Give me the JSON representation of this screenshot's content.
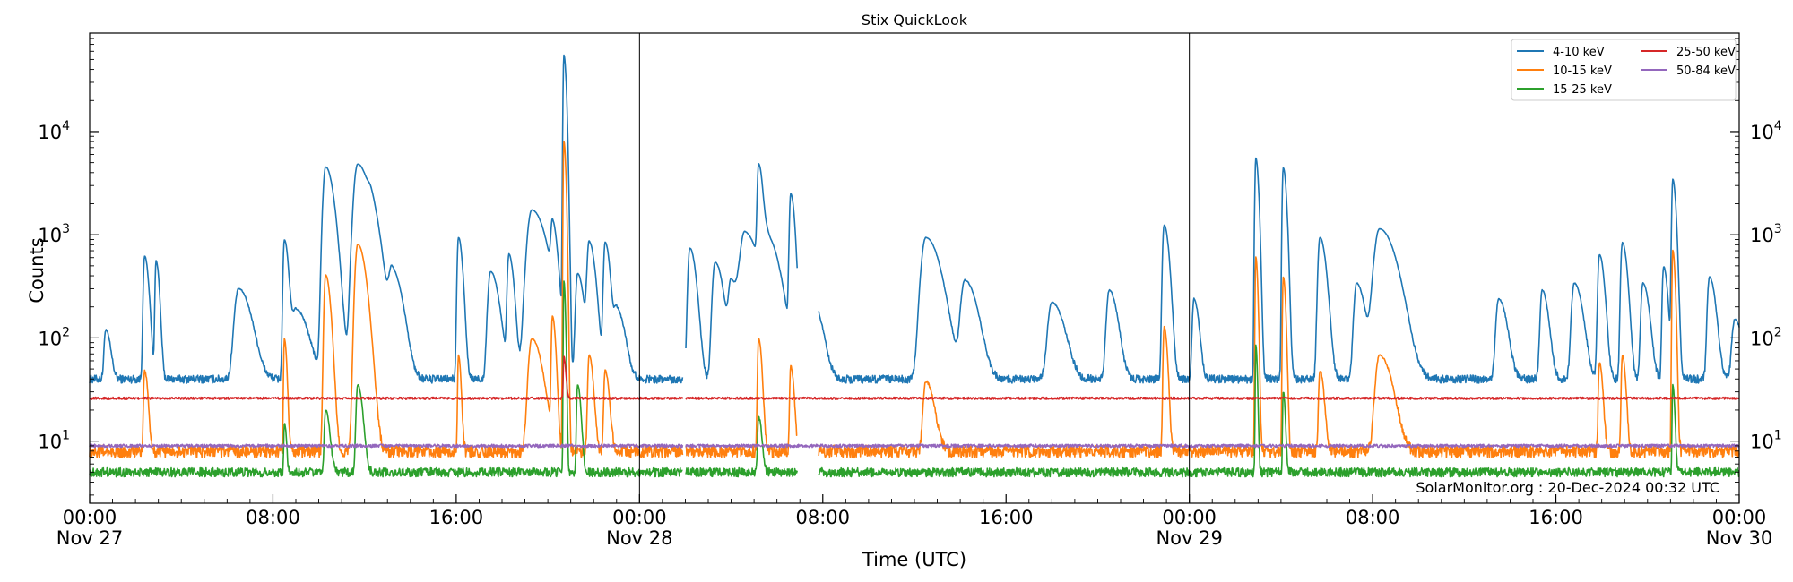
{
  "chart_data": {
    "type": "line",
    "title": "Stix QuickLook",
    "xlabel": "Time (UTC)",
    "ylabel": "Counts",
    "yscale": "log",
    "ylim": [
      2.5,
      90000
    ],
    "xlim_hours": [
      0,
      72
    ],
    "y_ticks": [
      {
        "value": 10,
        "label": "10",
        "exp": "1"
      },
      {
        "value": 100,
        "label": "10",
        "exp": "2"
      },
      {
        "value": 1000,
        "label": "10",
        "exp": "3"
      },
      {
        "value": 10000,
        "label": "10",
        "exp": "4"
      }
    ],
    "x_ticks": [
      {
        "hour": 0,
        "time": "00:00",
        "date": "Nov 27"
      },
      {
        "hour": 8,
        "time": "08:00",
        "date": ""
      },
      {
        "hour": 16,
        "time": "16:00",
        "date": ""
      },
      {
        "hour": 24,
        "time": "00:00",
        "date": "Nov 28"
      },
      {
        "hour": 32,
        "time": "08:00",
        "date": ""
      },
      {
        "hour": 40,
        "time": "16:00",
        "date": ""
      },
      {
        "hour": 48,
        "time": "00:00",
        "date": "Nov 29"
      },
      {
        "hour": 56,
        "time": "08:00",
        "date": ""
      },
      {
        "hour": 64,
        "time": "16:00",
        "date": ""
      },
      {
        "hour": 72,
        "time": "00:00",
        "date": "Nov 30"
      }
    ],
    "day_dividers_hours": [
      24,
      48
    ],
    "legend_position": "top-right",
    "annotation": "SolarMonitor.org : 20-Dec-2024 00:32 UTC",
    "series": [
      {
        "name": "4-10 keV",
        "color": "#1f77b4",
        "baseline": 40,
        "noise": 0.09,
        "gaps": [
          [
            25.9,
            26.0
          ],
          [
            30.9,
            31.8
          ]
        ],
        "peaks": [
          {
            "t": 0.7,
            "v": 80,
            "w": 0.12
          },
          {
            "t": 2.4,
            "v": 580,
            "w": 0.1
          },
          {
            "t": 2.9,
            "v": 520,
            "w": 0.08
          },
          {
            "t": 6.5,
            "v": 260,
            "w": 0.3
          },
          {
            "t": 8.5,
            "v": 850,
            "w": 0.1
          },
          {
            "t": 9.0,
            "v": 150,
            "w": 0.3
          },
          {
            "t": 10.3,
            "v": 4500,
            "w": 0.2
          },
          {
            "t": 11.7,
            "v": 4800,
            "w": 0.3
          },
          {
            "t": 12.3,
            "v": 800,
            "w": 0.25
          },
          {
            "t": 13.2,
            "v": 400,
            "w": 0.25
          },
          {
            "t": 16.1,
            "v": 900,
            "w": 0.1
          },
          {
            "t": 17.5,
            "v": 400,
            "w": 0.2
          },
          {
            "t": 18.3,
            "v": 600,
            "w": 0.12
          },
          {
            "t": 19.3,
            "v": 1700,
            "w": 0.35
          },
          {
            "t": 20.2,
            "v": 1000,
            "w": 0.12
          },
          {
            "t": 20.7,
            "v": 55000,
            "w": 0.06
          },
          {
            "t": 21.3,
            "v": 380,
            "w": 0.15
          },
          {
            "t": 21.8,
            "v": 800,
            "w": 0.15
          },
          {
            "t": 22.5,
            "v": 800,
            "w": 0.12
          },
          {
            "t": 23.0,
            "v": 150,
            "w": 0.2
          },
          {
            "t": 26.2,
            "v": 700,
            "w": 0.15
          },
          {
            "t": 27.3,
            "v": 500,
            "w": 0.2
          },
          {
            "t": 28.0,
            "v": 300,
            "w": 0.2
          },
          {
            "t": 28.6,
            "v": 1000,
            "w": 0.35
          },
          {
            "t": 29.2,
            "v": 4300,
            "w": 0.1
          },
          {
            "t": 29.6,
            "v": 800,
            "w": 0.3
          },
          {
            "t": 30.6,
            "v": 2400,
            "w": 0.1
          },
          {
            "t": 31.5,
            "v": 200,
            "w": 0.25
          },
          {
            "t": 36.5,
            "v": 900,
            "w": 0.35
          },
          {
            "t": 38.2,
            "v": 320,
            "w": 0.3
          },
          {
            "t": 42.0,
            "v": 180,
            "w": 0.3
          },
          {
            "t": 44.5,
            "v": 250,
            "w": 0.2
          },
          {
            "t": 46.9,
            "v": 1200,
            "w": 0.12
          },
          {
            "t": 48.2,
            "v": 200,
            "w": 0.12
          },
          {
            "t": 50.9,
            "v": 5500,
            "w": 0.07
          },
          {
            "t": 52.1,
            "v": 4400,
            "w": 0.08
          },
          {
            "t": 53.7,
            "v": 900,
            "w": 0.15
          },
          {
            "t": 55.3,
            "v": 300,
            "w": 0.2
          },
          {
            "t": 56.3,
            "v": 1100,
            "w": 0.4
          },
          {
            "t": 61.5,
            "v": 200,
            "w": 0.2
          },
          {
            "t": 63.4,
            "v": 250,
            "w": 0.15
          },
          {
            "t": 64.8,
            "v": 300,
            "w": 0.2
          },
          {
            "t": 65.9,
            "v": 600,
            "w": 0.12
          },
          {
            "t": 66.9,
            "v": 800,
            "w": 0.12
          },
          {
            "t": 67.8,
            "v": 300,
            "w": 0.15
          },
          {
            "t": 68.7,
            "v": 450,
            "w": 0.1
          },
          {
            "t": 69.1,
            "v": 3400,
            "w": 0.08
          },
          {
            "t": 70.7,
            "v": 350,
            "w": 0.15
          },
          {
            "t": 71.8,
            "v": 110,
            "w": 0.2
          }
        ]
      },
      {
        "name": "10-15 keV",
        "color": "#ff7f0e",
        "baseline": 8,
        "noise": 0.14,
        "gaps": [
          [
            25.9,
            26.0
          ],
          [
            30.9,
            31.8
          ]
        ],
        "peaks": [
          {
            "t": 2.4,
            "v": 40,
            "w": 0.08
          },
          {
            "t": 8.5,
            "v": 90,
            "w": 0.06
          },
          {
            "t": 10.3,
            "v": 400,
            "w": 0.12
          },
          {
            "t": 11.7,
            "v": 800,
            "w": 0.2
          },
          {
            "t": 16.1,
            "v": 60,
            "w": 0.06
          },
          {
            "t": 19.3,
            "v": 90,
            "w": 0.25
          },
          {
            "t": 20.2,
            "v": 150,
            "w": 0.08
          },
          {
            "t": 20.7,
            "v": 8000,
            "w": 0.05
          },
          {
            "t": 21.8,
            "v": 60,
            "w": 0.1
          },
          {
            "t": 22.5,
            "v": 40,
            "w": 0.1
          },
          {
            "t": 29.2,
            "v": 90,
            "w": 0.08
          },
          {
            "t": 30.6,
            "v": 45,
            "w": 0.08
          },
          {
            "t": 36.5,
            "v": 30,
            "w": 0.2
          },
          {
            "t": 46.9,
            "v": 120,
            "w": 0.08
          },
          {
            "t": 50.9,
            "v": 600,
            "w": 0.05
          },
          {
            "t": 52.1,
            "v": 380,
            "w": 0.06
          },
          {
            "t": 53.7,
            "v": 40,
            "w": 0.1
          },
          {
            "t": 56.3,
            "v": 60,
            "w": 0.3
          },
          {
            "t": 65.9,
            "v": 50,
            "w": 0.08
          },
          {
            "t": 66.9,
            "v": 60,
            "w": 0.08
          },
          {
            "t": 69.1,
            "v": 700,
            "w": 0.06
          }
        ]
      },
      {
        "name": "15-25 keV",
        "color": "#2ca02c",
        "baseline": 5,
        "noise": 0.1,
        "gaps": [
          [
            25.9,
            26.0
          ],
          [
            30.9,
            31.8
          ]
        ],
        "peaks": [
          {
            "t": 8.5,
            "v": 10,
            "w": 0.05
          },
          {
            "t": 10.3,
            "v": 15,
            "w": 0.1
          },
          {
            "t": 11.7,
            "v": 30,
            "w": 0.12
          },
          {
            "t": 20.7,
            "v": 350,
            "w": 0.04
          },
          {
            "t": 21.3,
            "v": 30,
            "w": 0.08
          },
          {
            "t": 29.2,
            "v": 12,
            "w": 0.08
          },
          {
            "t": 50.9,
            "v": 80,
            "w": 0.04
          },
          {
            "t": 52.1,
            "v": 25,
            "w": 0.05
          },
          {
            "t": 69.1,
            "v": 30,
            "w": 0.05
          }
        ]
      },
      {
        "name": "25-50 keV",
        "color": "#d62728",
        "baseline": 26,
        "noise": 0.025,
        "gaps": [
          [
            25.9,
            26.0
          ]
        ],
        "peaks": [
          {
            "t": 20.7,
            "v": 40,
            "w": 0.05
          }
        ]
      },
      {
        "name": "50-84 keV",
        "color": "#9467bd",
        "baseline": 9,
        "noise": 0.035,
        "gaps": [
          [
            25.9,
            26.0
          ]
        ],
        "peaks": []
      }
    ]
  }
}
